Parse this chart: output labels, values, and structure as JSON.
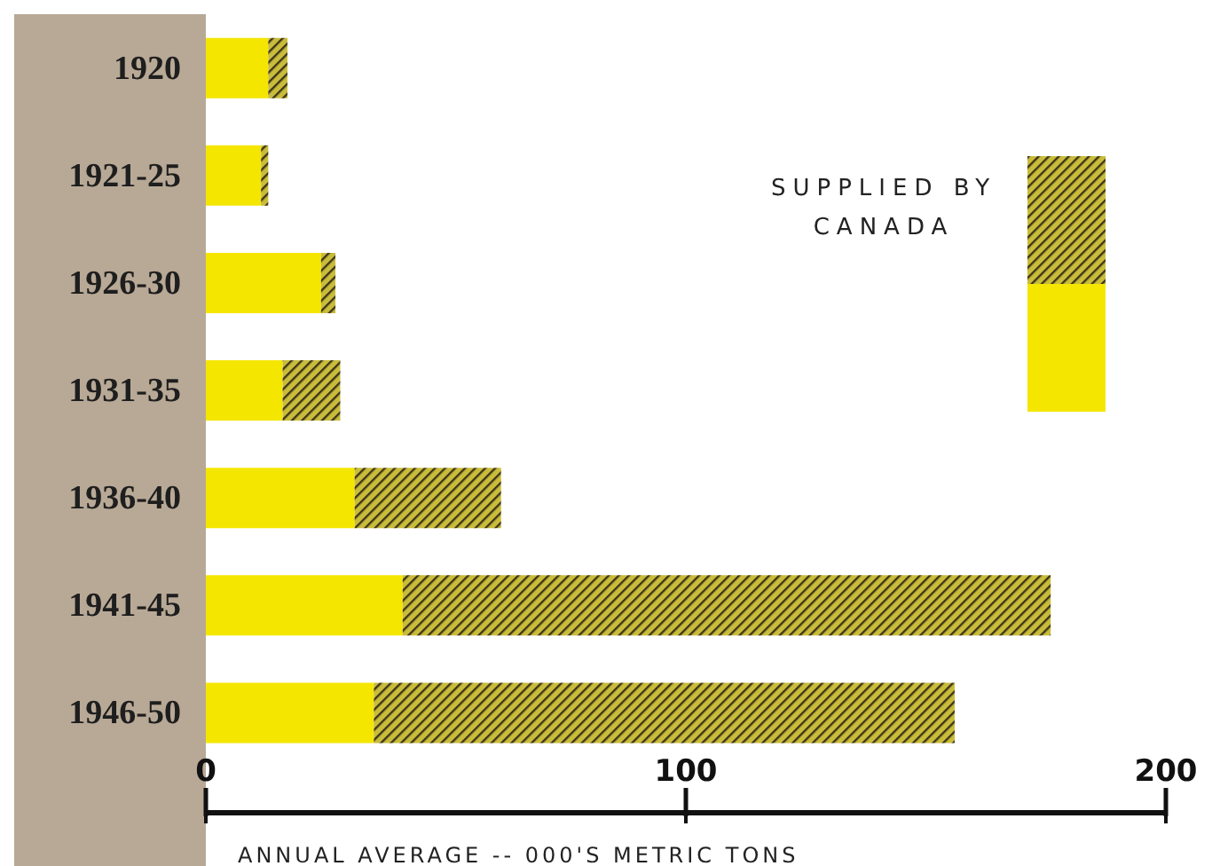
{
  "chart_data": {
    "type": "bar",
    "orientation": "horizontal",
    "stacked": true,
    "xlabel": "ANNUAL AVERAGE -- 000'S METRIC TONS",
    "categories": [
      "1920",
      "1921-25",
      "1926-30",
      "1931-35",
      "1936-40",
      "1941-45",
      "1946-50"
    ],
    "series": [
      {
        "color": "#f5e600",
        "values": [
          13,
          11.5,
          24,
          16,
          31,
          41,
          35
        ]
      },
      {
        "name": "SUPPLIED BY CANADA",
        "color": "#3d3518",
        "values": [
          4,
          1.5,
          3,
          12,
          30.5,
          135,
          121
        ]
      }
    ],
    "xlim": [
      0,
      200
    ],
    "xticks": [
      0,
      100,
      200
    ],
    "legend": "top right"
  }
}
